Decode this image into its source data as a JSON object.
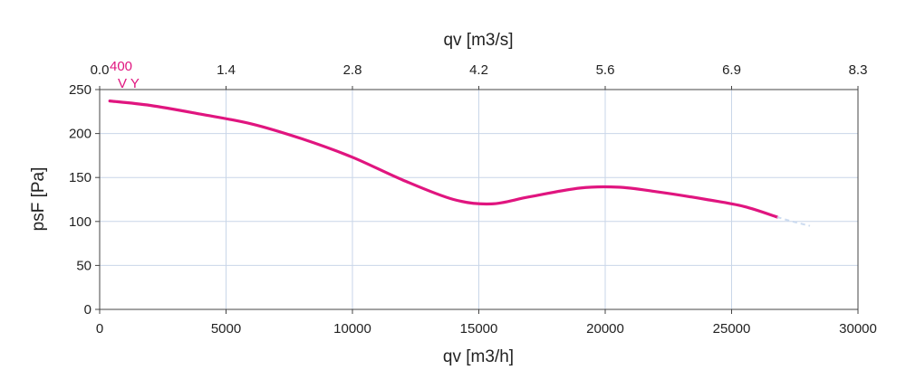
{
  "chart_data": {
    "type": "line",
    "top_axis": {
      "label": "qv [m3/s]",
      "ticks": [
        "0.0",
        "1.4",
        "2.8",
        "4.2",
        "5.6",
        "6.9",
        "8.3"
      ]
    },
    "x_axis": {
      "label": "qv [m3/h]",
      "range": [
        0,
        30000
      ],
      "ticks": [
        0,
        5000,
        10000,
        15000,
        20000,
        25000,
        30000
      ]
    },
    "y_axis": {
      "label": "psF [Pa]",
      "range": [
        0,
        250
      ],
      "ticks": [
        0,
        50,
        100,
        150,
        200,
        250
      ]
    },
    "grid": true,
    "series": [
      {
        "name": "400 V Y",
        "color": "#e0157f",
        "extension_color": "#c8d8ee",
        "x": [
          400,
          2000,
          4000,
          6000,
          8000,
          10000,
          12000,
          14000,
          15500,
          17000,
          19000,
          20500,
          22000,
          24000,
          25500,
          26800
        ],
        "y": [
          237,
          232,
          222,
          211,
          194,
          173,
          147,
          125,
          120,
          128,
          138,
          139,
          134,
          125,
          117,
          105
        ],
        "extension_x": [
          26800,
          27400,
          28100
        ],
        "extension_y": [
          105,
          100,
          95
        ]
      }
    ],
    "curve_label": {
      "line1": "400",
      "line2": "V Y"
    }
  }
}
